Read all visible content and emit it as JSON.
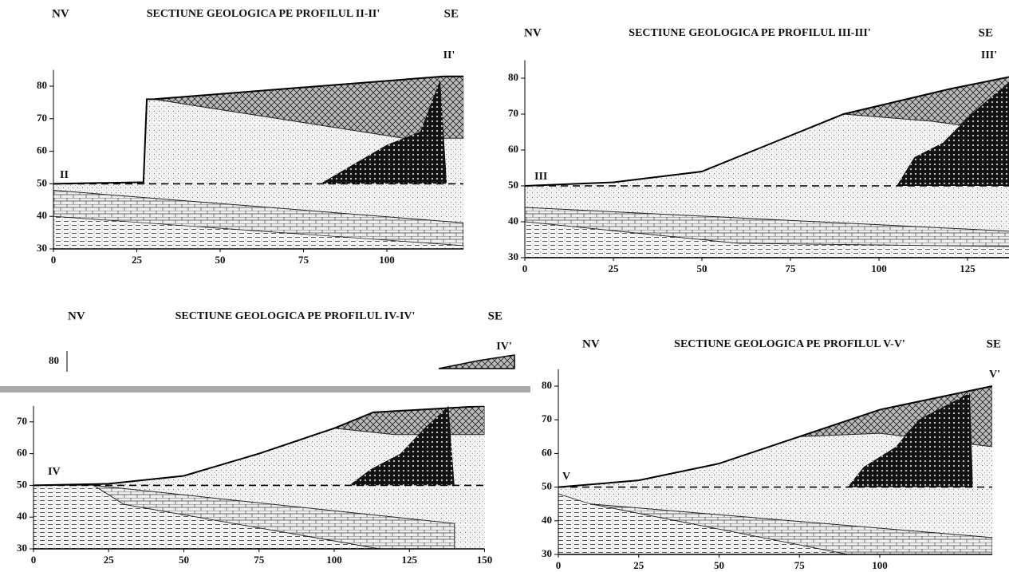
{
  "sections": [
    {
      "title": "SECTIUNE GEOLOGICA PE PROFILUL II-II'",
      "left": "NV",
      "right": "SE",
      "start_label": "II",
      "end_label": "II'",
      "yticks": [
        30,
        40,
        50,
        60,
        70,
        80
      ],
      "xticks": [
        0,
        25,
        50,
        75,
        100
      ]
    },
    {
      "title": "SECTIUNE GEOLOGICA PE PROFILUL III-III'",
      "left": "NV",
      "right": "SE",
      "start_label": "III",
      "end_label": "III'",
      "yticks": [
        30,
        40,
        50,
        60,
        70,
        80
      ],
      "xticks": [
        0,
        25,
        50,
        75,
        100,
        125
      ]
    },
    {
      "title": "SECTIUNE GEOLOGICA PE PROFILUL IV-IV'",
      "left": "NV",
      "right": "SE",
      "start_label": "IV",
      "end_label": "IV'",
      "upper_ytick": 80,
      "yticks": [
        30,
        40,
        50,
        60,
        70
      ],
      "xticks": [
        0,
        25,
        50,
        75,
        100,
        125,
        150
      ]
    },
    {
      "title": "SECTIUNE GEOLOGICA PE PROFILUL V-V'",
      "left": "NV",
      "right": "SE",
      "start_label": "V",
      "end_label": "V'",
      "yticks": [
        30,
        40,
        50,
        60,
        70,
        80
      ],
      "xticks": [
        0,
        25,
        50,
        75,
        100
      ]
    }
  ]
}
